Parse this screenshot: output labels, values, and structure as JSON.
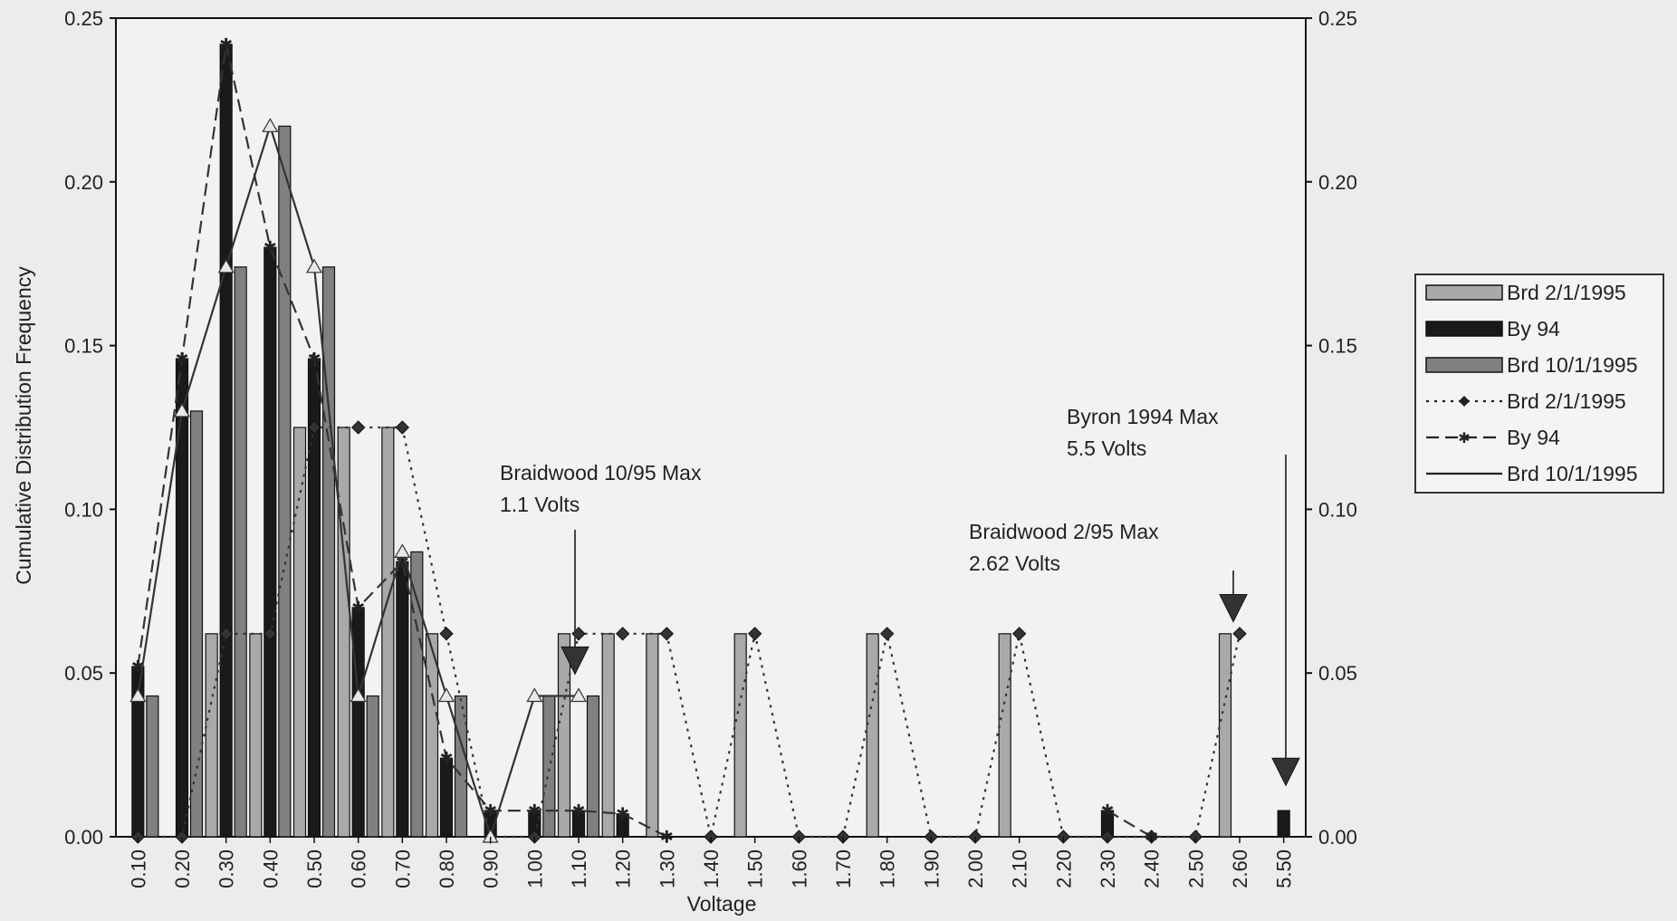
{
  "chart_data": {
    "type": "bar",
    "xlabel": "Voltage",
    "ylabel": "Cumulative Distribution Frequency",
    "ylim": [
      0,
      0.25
    ],
    "y_ticks": [
      "0.00",
      "0.05",
      "0.10",
      "0.15",
      "0.20",
      "0.25"
    ],
    "categories": [
      "0.10",
      "0.20",
      "0.30",
      "0.40",
      "0.50",
      "0.60",
      "0.70",
      "0.80",
      "0.90",
      "1.00",
      "1.10",
      "1.20",
      "1.30",
      "1.40",
      "1.50",
      "1.60",
      "1.70",
      "1.80",
      "1.90",
      "2.00",
      "2.10",
      "2.20",
      "2.30",
      "2.40",
      "2.50",
      "2.60",
      "5.50"
    ],
    "series": [
      {
        "name": "Brd 2/1/1995",
        "render": "bar",
        "color": "#a9a9a9",
        "values": [
          0,
          0,
          0.062,
          0.062,
          0.125,
          0.125,
          0.125,
          0.062,
          0,
          0,
          0.062,
          0.062,
          0.062,
          0,
          0.062,
          0,
          0,
          0.062,
          0,
          0,
          0.062,
          0,
          0,
          0,
          0,
          0.062,
          0
        ]
      },
      {
        "name": "By 94",
        "render": "bar",
        "color": "#1a1a1a",
        "values": [
          0.052,
          0.146,
          0.242,
          0.18,
          0.146,
          0.07,
          0.084,
          0.024,
          0.008,
          0.008,
          0.008,
          0.007,
          0,
          0,
          0,
          0,
          0,
          0,
          0,
          0,
          0,
          0,
          0.008,
          0,
          0,
          0,
          0.008
        ]
      },
      {
        "name": "Brd 10/1/1995",
        "render": "bar",
        "color": "#808080",
        "values": [
          0.043,
          0.13,
          0.174,
          0.217,
          0.174,
          0.043,
          0.087,
          0.043,
          0,
          0.043,
          0.043,
          0,
          0,
          0,
          0,
          0,
          0,
          0,
          0,
          0,
          0,
          0,
          0,
          0,
          0,
          0,
          0
        ]
      },
      {
        "name": "Brd 2/1/1995",
        "render": "line-dotted-diamond",
        "color": "#333333",
        "values": [
          0,
          0,
          0.062,
          0.062,
          0.125,
          0.125,
          0.125,
          0.062,
          0,
          0,
          0.062,
          0.062,
          0.062,
          0,
          0.062,
          0,
          0,
          0.062,
          0,
          0,
          0.062,
          0,
          0,
          0,
          0,
          0.062,
          null
        ]
      },
      {
        "name": "By 94",
        "render": "line-dashed-star",
        "color": "#333333",
        "values": [
          0.052,
          0.146,
          0.242,
          0.18,
          0.146,
          0.07,
          0.084,
          0.024,
          0.008,
          0.008,
          0.008,
          0.007,
          0,
          null,
          null,
          null,
          null,
          null,
          null,
          null,
          null,
          null,
          0.008,
          0,
          null,
          null,
          null
        ]
      },
      {
        "name": "Brd 10/1/1995",
        "render": "line-solid-triangle",
        "color": "#333333",
        "values": [
          0.043,
          0.13,
          0.174,
          0.217,
          0.174,
          0.043,
          0.087,
          0.043,
          0,
          0.043,
          0.043,
          null,
          null,
          null,
          null,
          null,
          null,
          null,
          null,
          null,
          null,
          null,
          null,
          null,
          null,
          null,
          null
        ]
      }
    ],
    "annotations": [
      {
        "lines": [
          "Braidwood 10/95 Max",
          "1.1 Volts"
        ],
        "category": "1.10",
        "marker_value": 0.053
      },
      {
        "lines": [
          "Braidwood 2/95 Max",
          "2.62 Volts"
        ],
        "category": "2.60",
        "marker_value": 0.069
      },
      {
        "lines": [
          "Byron 1994 Max",
          "5.5 Volts"
        ],
        "category": "5.50",
        "marker_value": 0.019
      }
    ],
    "legend": {
      "placement": "right",
      "entries": [
        "Brd 2/1/1995",
        "By 94",
        "Brd 10/1/1995",
        "Brd 2/1/1995",
        "By 94",
        "Brd 10/1/1995"
      ]
    },
    "grid": false
  }
}
